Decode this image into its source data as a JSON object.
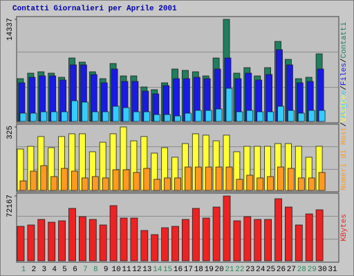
{
  "chart_data": [
    {
      "type": "bar",
      "title": "Contatti Giornalieri per Aprile 2001",
      "ylim": [
        0,
        14337
      ],
      "yticks": [
        14337
      ],
      "separator": "/",
      "series": [
        {
          "name": "Contatti",
          "color": "#1f7f5f",
          "values": [
            6006,
            6781,
            6975,
            6781,
            6200,
            8912,
            8331,
            6975,
            6006,
            8137,
            6393,
            6393,
            4844,
            4456,
            5425,
            7362,
            7168,
            6975,
            6393,
            8912,
            14337,
            6781,
            7556,
            6393,
            7556,
            11237,
            8718,
            6006,
            6200,
            9493,
            0
          ]
        },
        {
          "name": "Files",
          "color": "#1a1ae6",
          "values": [
            5425,
            6200,
            6393,
            6393,
            5812,
            7943,
            7943,
            6587,
            5425,
            7362,
            5618,
            5618,
            4262,
            3875,
            5037,
            6006,
            6006,
            6200,
            6006,
            7362,
            8912,
            6006,
            6781,
            5812,
            6587,
            10074,
            7943,
            5425,
            5618,
            7362,
            0
          ]
        },
        {
          "name": "Pagine",
          "color": "#33ccff",
          "values": [
            1162,
            1162,
            1356,
            1356,
            1356,
            2906,
            2712,
            1356,
            1356,
            2131,
            1937,
            1356,
            1356,
            969,
            969,
            775,
            1162,
            1550,
            1550,
            1744,
            4650,
            1356,
            1550,
            1356,
            1356,
            2131,
            1550,
            1162,
            1550,
            1550,
            0
          ]
        }
      ]
    },
    {
      "type": "bar",
      "ylim": [
        0,
        325
      ],
      "yticks": [
        325
      ],
      "separator": "/",
      "series": [
        {
          "name": "Visite",
          "color": "#ffff33",
          "values": [
            212,
            226,
            276,
            219,
            276,
            290,
            290,
            198,
            247,
            290,
            325,
            254,
            276,
            191,
            219,
            170,
            240,
            290,
            283,
            254,
            283,
            198,
            226,
            226,
            226,
            240,
            240,
            226,
            170,
            226,
            0
          ]
        },
        {
          "name": "Numeri di Host",
          "color": "#ff9922",
          "values": [
            49,
            99,
            127,
            71,
            113,
            99,
            64,
            71,
            64,
            106,
            106,
            92,
            113,
            57,
            64,
            64,
            120,
            120,
            120,
            120,
            120,
            57,
            78,
            64,
            71,
            120,
            113,
            64,
            64,
            92,
            0
          ]
        }
      ]
    },
    {
      "type": "bar",
      "ylim": [
        0,
        72167
      ],
      "yticks": [
        72167
      ],
      "categories": [
        "1",
        "2",
        "3",
        "4",
        "5",
        "6",
        "7",
        "8",
        "9",
        "10",
        "11",
        "12",
        "13",
        "14",
        "15",
        "16",
        "17",
        "18",
        "19",
        "20",
        "21",
        "22",
        "23",
        "24",
        "25",
        "26",
        "27",
        "28",
        "29",
        "30",
        "31"
      ],
      "highlight_indices": [
        0,
        6,
        7,
        13,
        14,
        20,
        21,
        27,
        28
      ],
      "highlight_color": "#2a8a5a",
      "series": [
        {
          "name": "KBytes",
          "color": "#ee2222",
          "values": [
            38385,
            39920,
            46062,
            42991,
            44527,
            58345,
            49133,
            46062,
            39920,
            61416,
            47598,
            47598,
            33779,
            29173,
            36850,
            38385,
            46062,
            58345,
            47598,
            59881,
            72167,
            44527,
            49133,
            46062,
            46062,
            69093,
            59881,
            39920,
            52204,
            56810,
            0
          ]
        }
      ]
    }
  ]
}
